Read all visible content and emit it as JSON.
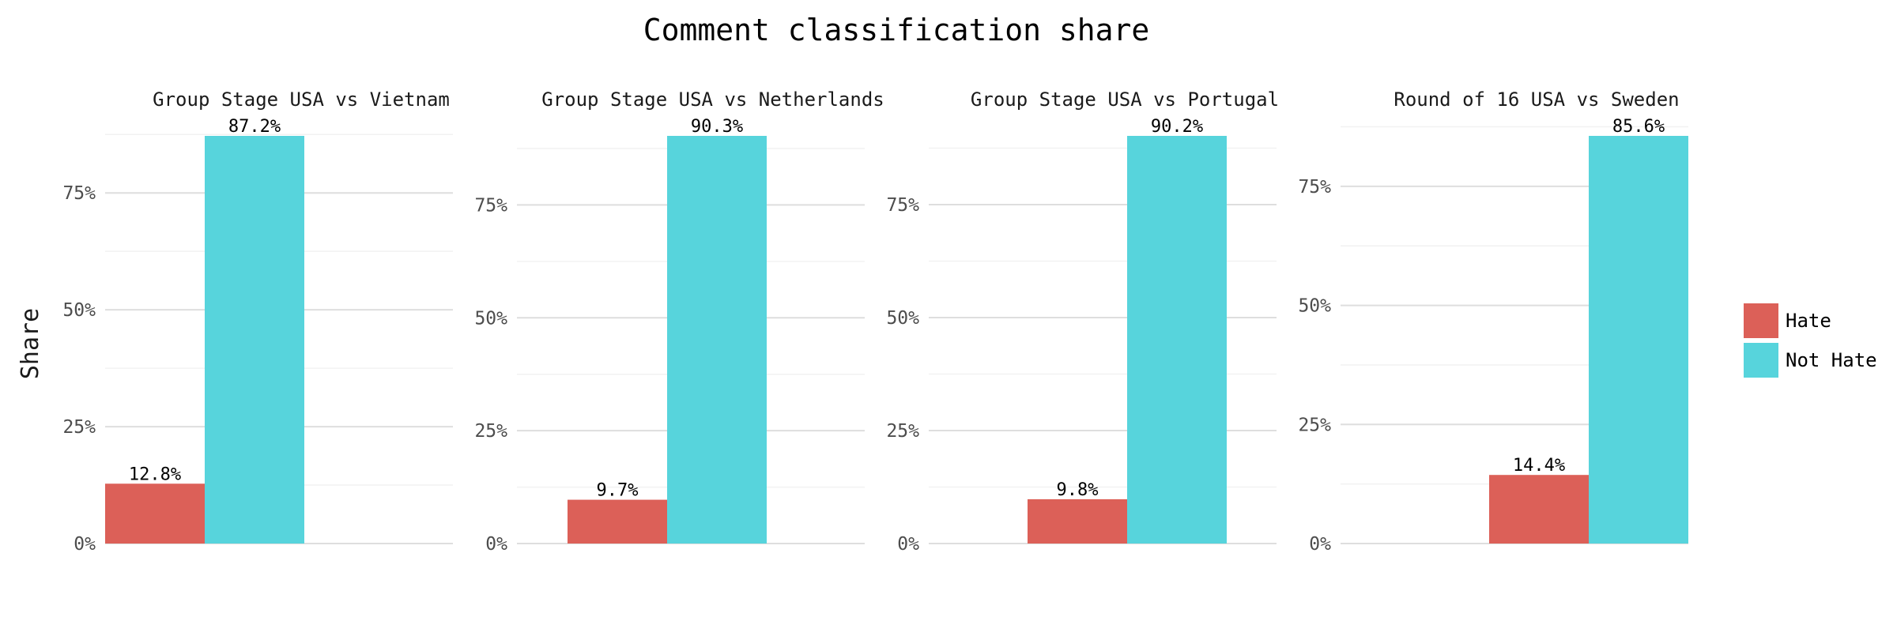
{
  "chart_data": {
    "type": "bar",
    "title": "Comment classification share",
    "ylabel": "Share",
    "ylim": [
      0,
      0.9
    ],
    "yticks": [
      0,
      0.25,
      0.5,
      0.75
    ],
    "ytick_labels": [
      "0%",
      "25%",
      "50%",
      "75%"
    ],
    "categories": [
      "Hate",
      "Not Hate"
    ],
    "colors": {
      "Hate": "#dc6058",
      "Not Hate": "#57d4dc"
    },
    "legend": {
      "position": "right",
      "entries": [
        "Hate",
        "Not Hate"
      ]
    },
    "grid": true,
    "panels": [
      {
        "title": "Group Stage USA vs Vietnam",
        "values": [
          0.128,
          0.872
        ],
        "labels": [
          "12.8%",
          "87.2%"
        ]
      },
      {
        "title": "Group Stage USA vs Netherlands",
        "values": [
          0.097,
          0.903
        ],
        "labels": [
          "9.7%",
          "90.3%"
        ]
      },
      {
        "title": "Group Stage USA vs Portugal",
        "values": [
          0.098,
          0.902
        ],
        "labels": [
          "9.8%",
          "90.2%"
        ]
      },
      {
        "title": "Round of 16 USA vs Sweden",
        "values": [
          0.144,
          0.856
        ],
        "labels": [
          "14.4%",
          "85.6%"
        ]
      }
    ]
  }
}
